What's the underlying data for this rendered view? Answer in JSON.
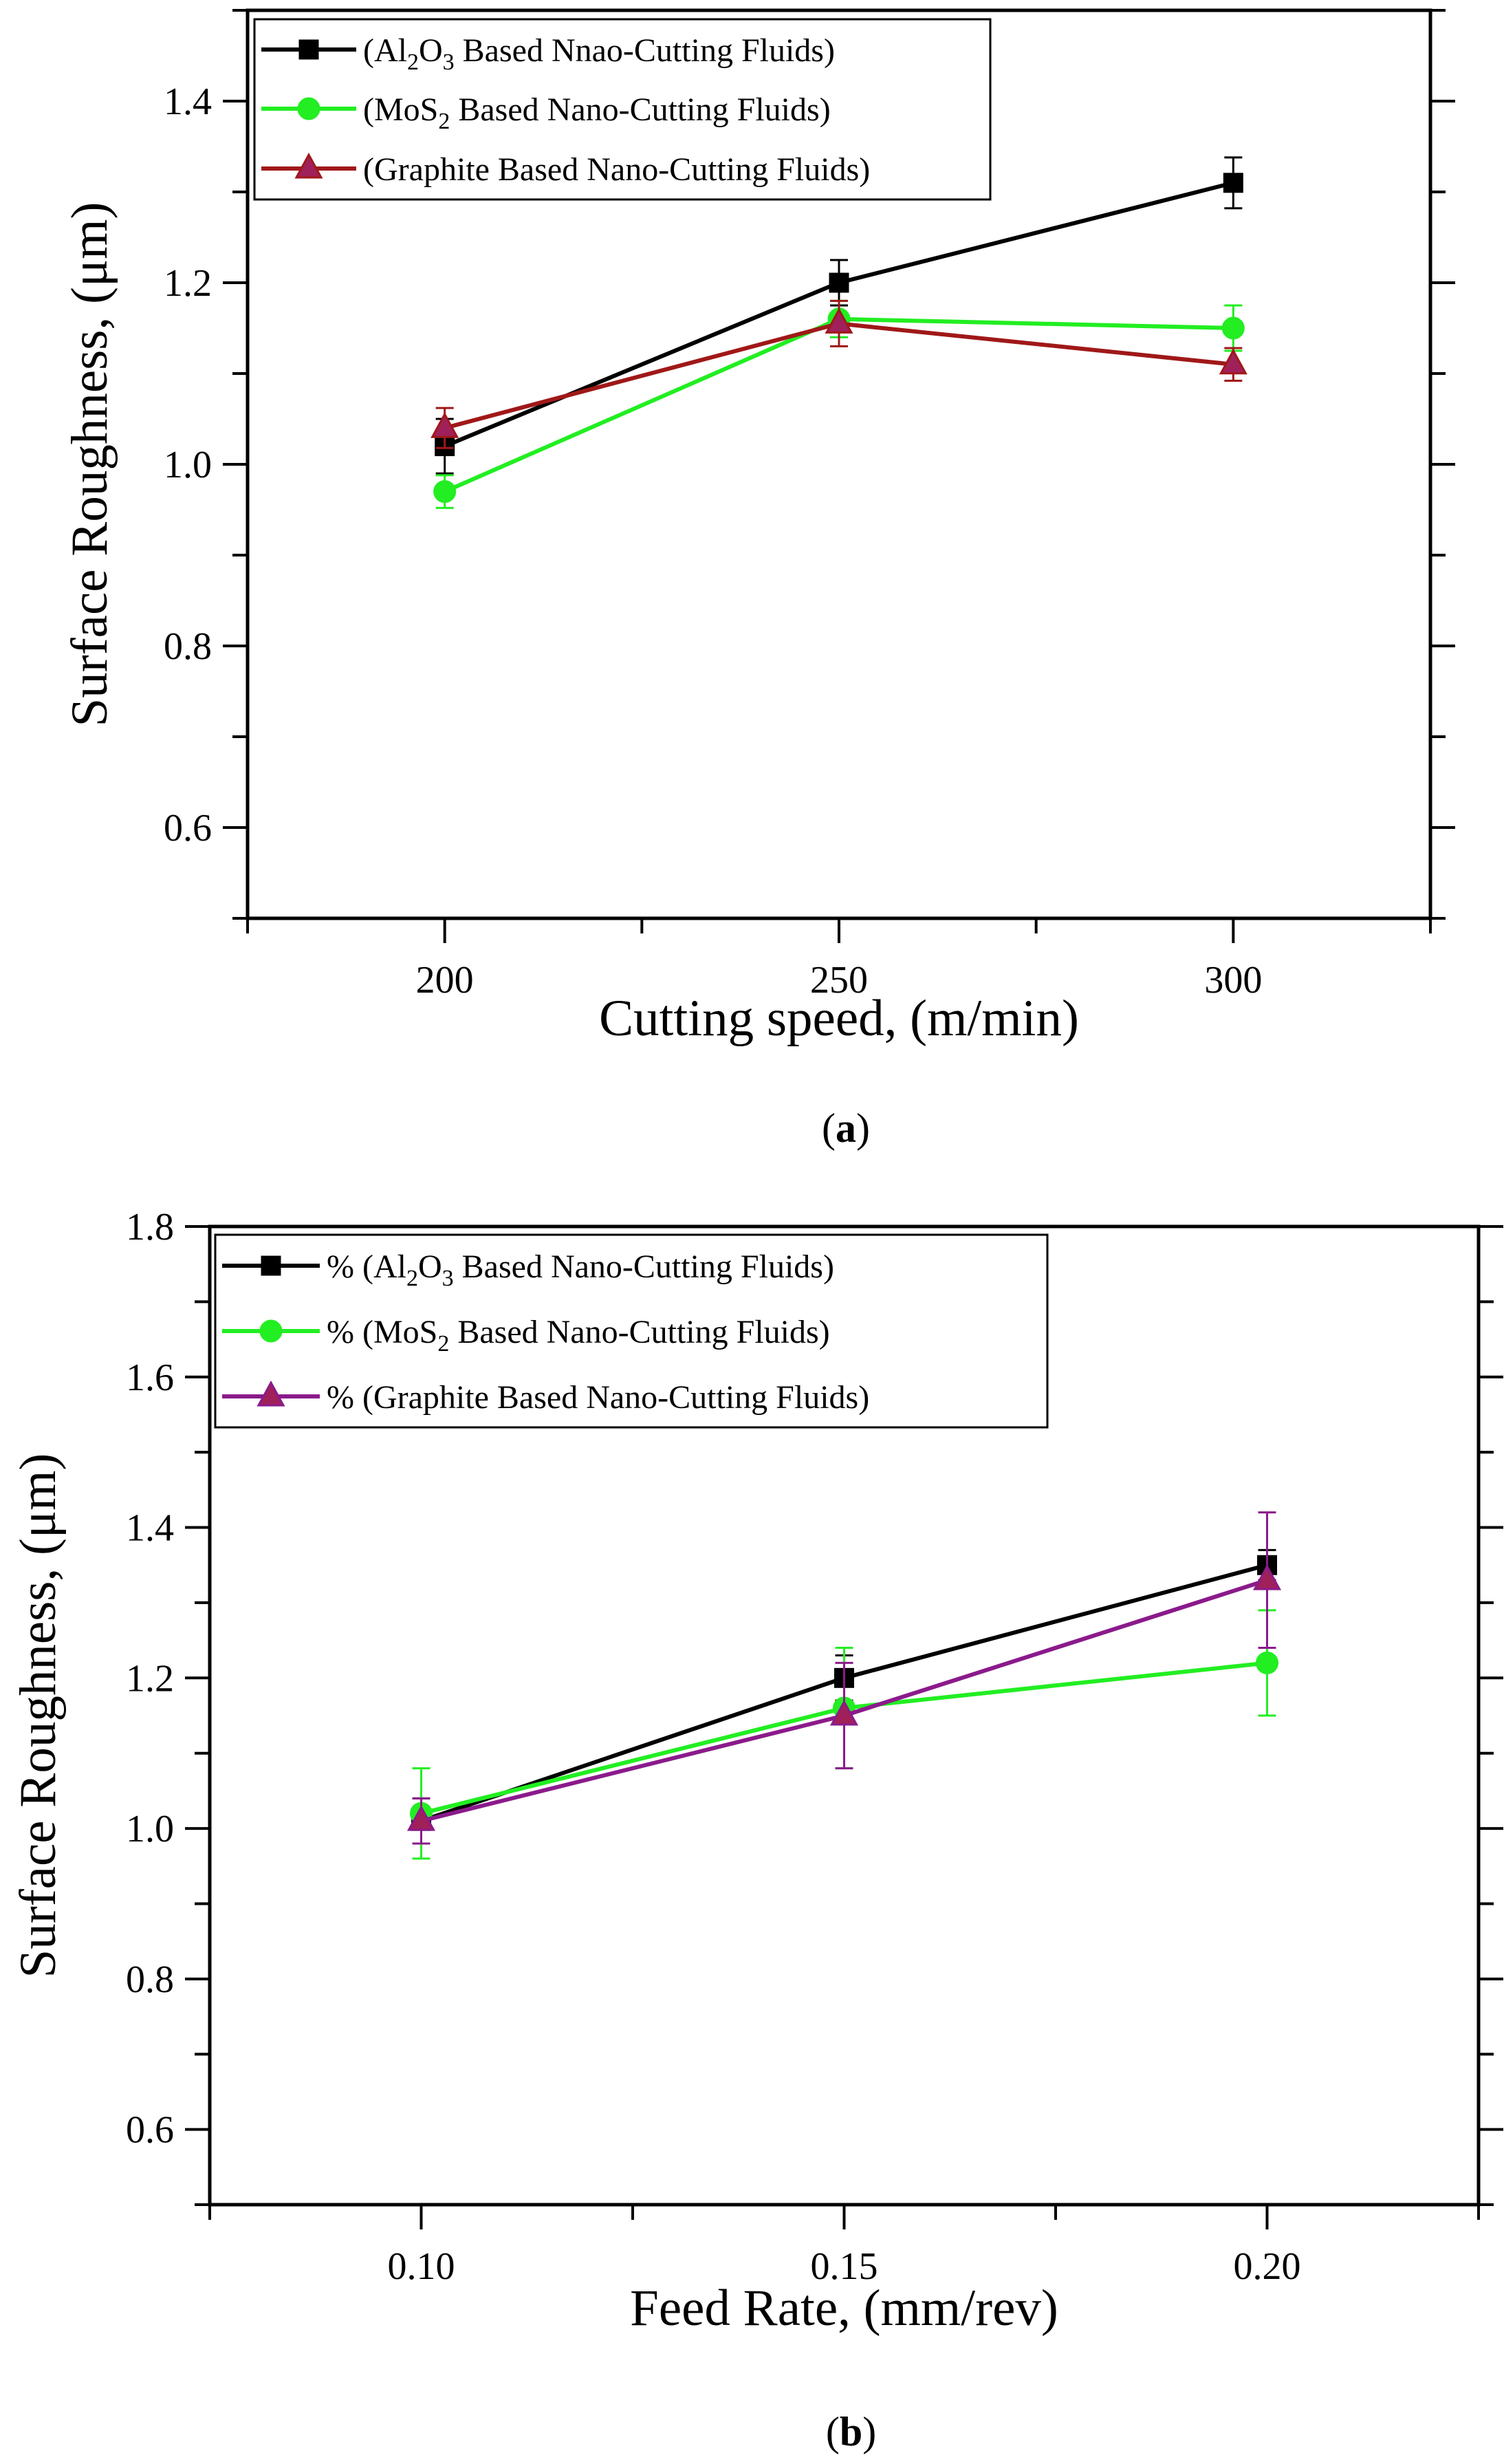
{
  "chart_data": [
    {
      "type": "line",
      "panel_label": "a",
      "xlabel": "Cutting speed, (m/min)",
      "ylabel": "Surface Roughness, (μm)",
      "xlim": [
        175,
        325
      ],
      "ylim": [
        0.5,
        1.5
      ],
      "xticks": [
        200,
        250,
        300
      ],
      "yticks": [
        0.6,
        0.8,
        1.0,
        1.2,
        1.4
      ],
      "xtick_labels": [
        "200",
        "250",
        "300"
      ],
      "ytick_labels": [
        "0.6",
        "0.8",
        "1.0",
        "1.2",
        "1.4"
      ],
      "x": [
        200,
        250,
        300
      ],
      "legend_position": "top-left",
      "series": [
        {
          "name": "(Al2O3 Based Nnao-Cutting Fluids)",
          "legend": {
            "pre": "(Al",
            "s1": "2",
            "mid": "O",
            "s2": "3",
            "post": " Based Nnao-Cutting Fluids)"
          },
          "values": [
            1.02,
            1.2,
            1.31
          ],
          "errors": [
            0.03,
            0.025,
            0.028
          ],
          "color": "#000000",
          "marker": "square"
        },
        {
          "name": "(MoS2 Based Nano-Cutting Fluids)",
          "legend": {
            "pre": "(MoS",
            "s1": "2",
            "post": " Based Nano-Cutting Fluids)"
          },
          "values": [
            0.97,
            1.16,
            1.15
          ],
          "errors": [
            0.018,
            0.02,
            0.025
          ],
          "color": "#22ee22",
          "marker": "circle"
        },
        {
          "name": "(Graphite Based Nano-Cutting Fluids)",
          "legend": {
            "pre": "(Graphite Based Nano-Cutting Fluids)"
          },
          "values": [
            1.04,
            1.155,
            1.11
          ],
          "errors": [
            0.022,
            0.025,
            0.018
          ],
          "color": "#a01818",
          "marker_fill": "#a0205a",
          "marker": "triangle"
        }
      ]
    },
    {
      "type": "line",
      "panel_label": "b",
      "xlabel": "Feed Rate, (mm/rev)",
      "ylabel": "Surface Roughness, (μm)",
      "xlim": [
        0.075,
        0.225
      ],
      "ylim": [
        0.5,
        1.8
      ],
      "xticks": [
        0.1,
        0.15,
        0.2
      ],
      "yticks": [
        0.6,
        0.8,
        1.0,
        1.2,
        1.4,
        1.6,
        1.8
      ],
      "xtick_labels": [
        "0.10",
        "0.15",
        "0.20"
      ],
      "ytick_labels": [
        "0.6",
        "0.8",
        "1.0",
        "1.2",
        "1.4",
        "1.6",
        "1.8"
      ],
      "x": [
        0.1,
        0.15,
        0.2
      ],
      "legend_position": "top-left",
      "series": [
        {
          "name": "% (Al2O3 Based Nano-Cutting Fluids)",
          "legend": {
            "pre": "% (Al",
            "s1": "2",
            "mid": "O",
            "s2": "3",
            "post": " Based Nano-Cutting Fluids)"
          },
          "values": [
            1.01,
            1.2,
            1.35
          ],
          "errors": [
            0.03,
            0.03,
            0.02
          ],
          "color": "#000000",
          "marker": "square"
        },
        {
          "name": "% (MoS2 Based Nano-Cutting Fluids)",
          "legend": {
            "pre": "% (MoS",
            "s1": "2",
            "post": " Based Nano-Cutting Fluids)"
          },
          "values": [
            1.02,
            1.16,
            1.22
          ],
          "errors": [
            0.06,
            0.08,
            0.07
          ],
          "color": "#22ee22",
          "marker": "circle"
        },
        {
          "name": "% (Graphite Based Nano-Cutting Fluids)",
          "legend": {
            "pre": "% (Graphite Based Nano-Cutting Fluids)"
          },
          "values": [
            1.01,
            1.15,
            1.33
          ],
          "errors": [
            0.03,
            0.07,
            0.09
          ],
          "color": "#8b1a8b",
          "marker_fill": "#a0205a",
          "marker": "triangle"
        }
      ]
    }
  ]
}
